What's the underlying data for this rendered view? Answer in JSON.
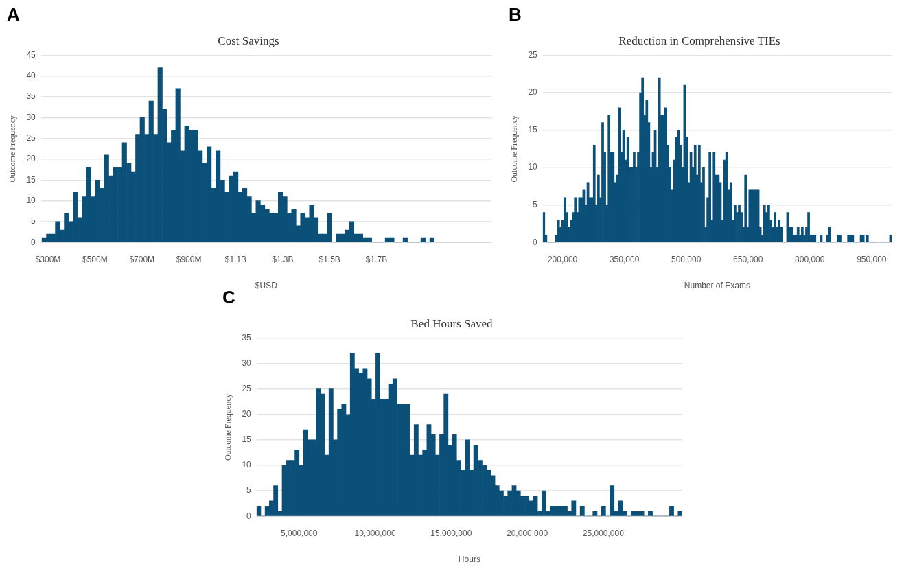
{
  "chart_data": [
    {
      "type": "histogram",
      "title": "Cost Savings",
      "xlabel": "$USD",
      "ylabel": "Outcome Frequency",
      "annotations": [
        "A"
      ],
      "color": "#0b5079",
      "grid": "y",
      "bins": [
        274000000,
        293000000,
        312000000,
        331000000,
        350000000,
        369000000,
        388000000,
        407000000,
        426000000,
        445000000,
        464000000,
        483000000,
        502000000,
        521000000,
        540000000,
        559000000,
        578000000,
        597000000,
        616000000,
        635000000,
        654000000,
        673000000,
        692000000,
        711000000,
        730000000,
        749000000,
        768000000,
        787000000,
        806000000,
        825000000,
        844000000,
        863000000,
        882000000,
        901000000,
        920000000,
        939000000,
        958000000,
        977000000,
        996000000,
        1015000000,
        1034000000,
        1053000000,
        1072000000,
        1091000000,
        1110000000,
        1129000000,
        1148000000,
        1167000000,
        1186000000,
        1205000000,
        1224000000,
        1243000000,
        1262000000,
        1281000000,
        1300000000,
        1319000000,
        1338000000,
        1357000000,
        1376000000,
        1395000000,
        1414000000,
        1433000000,
        1452000000,
        1471000000,
        1490000000,
        1509000000,
        1528000000,
        1547000000,
        1566000000,
        1585000000,
        1604000000,
        1623000000,
        1642000000,
        1661000000,
        1680000000,
        1699000000,
        1718000000,
        1737000000,
        1756000000,
        1775000000,
        1794000000,
        1813000000,
        1832000000,
        1851000000,
        1870000000,
        1889000000,
        1908000000,
        1927000000,
        1946000000
      ],
      "values": [
        1,
        2,
        2,
        5,
        3,
        7,
        5,
        12,
        6,
        11,
        18,
        11,
        15,
        13,
        21,
        16,
        18,
        18,
        24,
        19,
        17,
        26,
        30,
        26,
        34,
        26,
        42,
        32,
        24,
        27,
        37,
        22,
        28,
        27,
        27,
        22,
        19,
        23,
        13,
        22,
        15,
        12,
        16,
        17,
        12,
        13,
        11,
        7,
        10,
        9,
        8,
        7,
        7,
        12,
        11,
        7,
        8,
        4,
        7,
        6,
        9,
        6,
        2,
        2,
        7,
        0,
        2,
        2,
        3,
        5,
        2,
        2,
        1,
        1,
        0,
        0,
        0,
        1,
        1,
        0,
        0,
        1,
        0,
        0,
        0,
        1,
        0,
        1
      ],
      "xlim": [
        270000000,
        2190000000
      ],
      "xticks": [
        {
          "value": 300000000,
          "label": "$300M"
        },
        {
          "value": 500000000,
          "label": "$500M"
        },
        {
          "value": 700000000,
          "label": "$700M"
        },
        {
          "value": 900000000,
          "label": "$900M"
        },
        {
          "value": 1100000000,
          "label": "$1.1B"
        },
        {
          "value": 1300000000,
          "label": "$1.3B"
        },
        {
          "value": 1500000000,
          "label": "$1.5B"
        },
        {
          "value": 1700000000,
          "label": "$1.7B"
        }
      ],
      "ylim": [
        0,
        45
      ],
      "yticks": [
        0,
        5,
        10,
        15,
        20,
        25,
        30,
        35,
        40,
        45
      ]
    },
    {
      "type": "histogram",
      "title": "Reduction in Comprehensive TIEs",
      "xlabel": "Number of Exams",
      "ylabel": "Outcome Frequency",
      "annotations": [
        "B"
      ],
      "color": "#0b5079",
      "grid": "y",
      "bins": [
        152000,
        157100,
        162200,
        167300,
        172400,
        177500,
        182600,
        187700,
        192800,
        197900,
        203000,
        208100,
        213200,
        218300,
        223400,
        228500,
        233600,
        238700,
        243800,
        248900,
        254000,
        259100,
        264200,
        269300,
        274400,
        279500,
        284600,
        289700,
        294800,
        299900,
        305000,
        310100,
        315200,
        320300,
        325400,
        330500,
        335600,
        340700,
        345800,
        350900,
        356000,
        361100,
        366200,
        371300,
        376400,
        381500,
        386600,
        391700,
        396800,
        401900,
        407000,
        412100,
        417200,
        422300,
        427400,
        432500,
        437600,
        442700,
        447800,
        452900,
        458000,
        463100,
        468200,
        473300,
        478400,
        483500,
        488600,
        493700,
        498800,
        503900,
        509000,
        514100,
        519200,
        524300,
        529400,
        534500,
        539600,
        544700,
        549800,
        554900,
        560000,
        565100,
        570200,
        575300,
        580400,
        585500,
        590600,
        595700,
        600800,
        605900,
        611000,
        616100,
        621200,
        626300,
        631400,
        636500,
        641600,
        646700,
        651800,
        656900,
        662000,
        667100,
        672200,
        677300,
        682400,
        687500,
        692600,
        697700,
        702800,
        707900,
        713000,
        718100,
        723200,
        728300,
        733400,
        738500,
        743600,
        748700,
        753800,
        758900,
        764000,
        769100,
        774200,
        779300,
        784400,
        789500,
        794600,
        799700,
        804800,
        809900,
        815000,
        820100,
        825200,
        830300,
        835400,
        840500,
        845600,
        850700,
        855800,
        860900,
        866000,
        871100,
        876200,
        881300,
        886400,
        891500,
        896600,
        901700,
        906800,
        911900,
        917000,
        922100,
        927200,
        932300,
        937400,
        942500,
        947600,
        952700,
        957800,
        962900,
        968000,
        973100,
        978200,
        983300,
        988400,
        993500,
        998600
      ],
      "values": [
        4,
        1,
        0,
        0,
        0,
        0,
        1,
        3,
        2,
        3,
        6,
        4,
        2,
        3,
        4,
        6,
        4,
        6,
        6,
        7,
        5,
        8,
        6,
        6,
        13,
        5,
        9,
        6,
        16,
        12,
        5,
        17,
        12,
        12,
        8,
        9,
        18,
        12,
        15,
        11,
        14,
        10,
        10,
        12,
        10,
        12,
        20,
        22,
        17,
        19,
        16,
        10,
        12,
        15,
        10,
        22,
        17,
        17,
        18,
        13,
        10,
        7,
        11,
        14,
        15,
        13,
        10,
        21,
        14,
        8,
        12,
        10,
        13,
        9,
        13,
        8,
        10,
        2,
        6,
        12,
        3,
        12,
        9,
        9,
        8,
        3,
        11,
        12,
        7,
        8,
        3,
        5,
        4,
        5,
        4,
        2,
        9,
        2,
        7,
        7,
        7,
        7,
        7,
        2,
        1,
        5,
        4,
        5,
        3,
        2,
        4,
        2,
        3,
        2,
        0,
        0,
        4,
        2,
        2,
        1,
        1,
        2,
        1,
        2,
        1,
        2,
        4,
        1,
        1,
        1,
        0,
        0,
        1,
        0,
        0,
        1,
        2,
        0,
        0,
        0,
        1,
        1,
        0,
        0,
        0,
        1,
        1,
        1,
        0,
        0,
        0,
        1,
        1,
        0,
        1,
        0,
        0,
        0,
        0,
        0,
        0,
        0,
        0,
        0,
        0,
        1
      ],
      "xlim": [
        152000,
        998600
      ],
      "xticks": [
        {
          "value": 200000,
          "label": "200,000"
        },
        {
          "value": 350000,
          "label": "350,000"
        },
        {
          "value": 500000,
          "label": "500,000"
        },
        {
          "value": 650000,
          "label": "650,000"
        },
        {
          "value": 800000,
          "label": "800,000"
        },
        {
          "value": 950000,
          "label": "950,000"
        }
      ],
      "ylim": [
        0,
        25
      ],
      "yticks": [
        0,
        5,
        10,
        15,
        20,
        25
      ]
    },
    {
      "type": "histogram",
      "title": "Bed Hours Saved",
      "xlabel": "Hours",
      "ylabel": "Outcome Frequency",
      "annotations": [
        "C"
      ],
      "color": "#0b5079",
      "grid": "y",
      "bins": [
        2200000,
        2480000,
        2760000,
        3040000,
        3320000,
        3600000,
        3880000,
        4160000,
        4440000,
        4720000,
        5000000,
        5280000,
        5560000,
        5840000,
        6120000,
        6400000,
        6680000,
        6960000,
        7240000,
        7520000,
        7800000,
        8080000,
        8360000,
        8640000,
        8920000,
        9200000,
        9480000,
        9760000,
        10040000,
        10320000,
        10600000,
        10880000,
        11160000,
        11440000,
        11720000,
        12000000,
        12280000,
        12560000,
        12840000,
        13120000,
        13400000,
        13680000,
        13960000,
        14240000,
        14520000,
        14800000,
        15080000,
        15360000,
        15640000,
        15920000,
        16200000,
        16480000,
        16760000,
        17040000,
        17320000,
        17600000,
        17880000,
        18160000,
        18440000,
        18720000,
        19000000,
        19280000,
        19560000,
        19840000,
        20120000,
        20400000,
        20680000,
        20960000,
        21240000,
        21520000,
        21800000,
        22080000,
        22360000,
        22640000,
        22920000,
        23200000,
        23480000,
        23760000,
        24040000,
        24320000,
        24600000,
        24880000,
        25160000,
        25440000,
        25720000,
        26000000,
        26280000,
        26560000,
        26840000,
        27120000,
        27400000,
        27680000,
        27960000,
        28240000,
        28520000,
        28800000,
        29080000,
        29360000,
        29640000,
        29920000,
        30200000
      ],
      "values": [
        2,
        0,
        2,
        3,
        6,
        1,
        10,
        11,
        11,
        13,
        10,
        17,
        15,
        15,
        25,
        24,
        12,
        25,
        15,
        21,
        22,
        20,
        32,
        29,
        28,
        29,
        27,
        23,
        32,
        23,
        23,
        26,
        27,
        22,
        22,
        22,
        12,
        18,
        12,
        13,
        18,
        16,
        12,
        16,
        24,
        14,
        16,
        11,
        9,
        15,
        9,
        14,
        11,
        10,
        9,
        8,
        6,
        5,
        4,
        5,
        6,
        5,
        4,
        4,
        3,
        4,
        1,
        5,
        1,
        2,
        2,
        2,
        2,
        1,
        3,
        0,
        2,
        0,
        0,
        1,
        0,
        2,
        0,
        6,
        1,
        3,
        1,
        0,
        1,
        1,
        1,
        0,
        1,
        0,
        0,
        0,
        0,
        2,
        0,
        1
      ],
      "xlim": [
        2200000,
        30200000
      ],
      "xticks": [
        {
          "value": 5000000,
          "label": "5,000,000"
        },
        {
          "value": 10000000,
          "label": "10,000,000"
        },
        {
          "value": 15000000,
          "label": "15,000,000"
        },
        {
          "value": 20000000,
          "label": "20,000,000"
        },
        {
          "value": 25000000,
          "label": "25,000,000"
        }
      ],
      "ylim": [
        0,
        35
      ],
      "yticks": [
        0,
        5,
        10,
        15,
        20,
        25,
        30,
        35
      ]
    }
  ]
}
